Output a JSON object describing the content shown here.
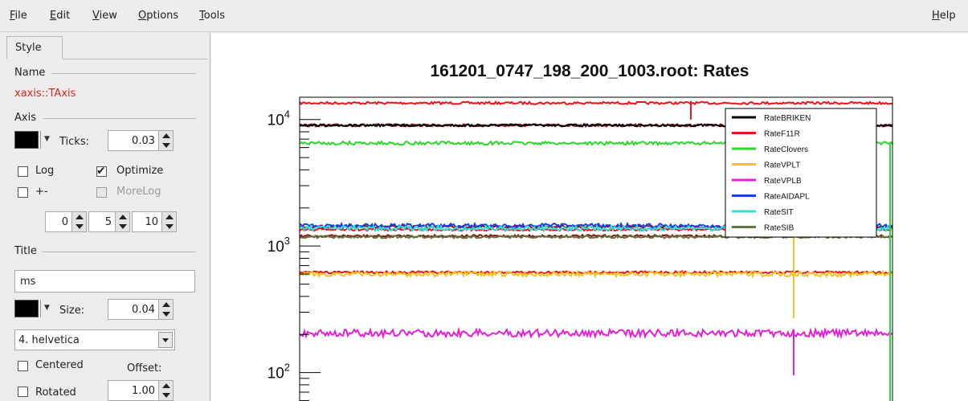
{
  "menubar": {
    "items": [
      {
        "key": "F",
        "rest": "ile"
      },
      {
        "key": "E",
        "rest": "dit"
      },
      {
        "key": "V",
        "rest": "iew"
      },
      {
        "key": "O",
        "rest": "ptions"
      },
      {
        "key": "T",
        "rest": "ools"
      }
    ],
    "help": {
      "key": "H",
      "rest": "elp"
    }
  },
  "editor": {
    "tab_label": "Style",
    "name_group": "Name",
    "object_name": "xaxis::TAxis",
    "axis_group": "Axis",
    "axis_color": "#000000",
    "ticks_label": "Ticks:",
    "ticks_value": "0.03",
    "log_label": "Log",
    "log_checked": false,
    "optimize_label": "Optimize",
    "optimize_checked": true,
    "plusminus_label": "+-",
    "plusminus_checked": false,
    "morelog_label": "MoreLog",
    "morelog_enabled": false,
    "divisions": [
      "0",
      "5",
      "10"
    ],
    "title_group": "Title",
    "title_value": "ms",
    "title_color": "#000000",
    "size_label": "Size:",
    "size_value": "0.04",
    "font_value": "4. helvetica",
    "centered_label": "Centered",
    "centered_checked": false,
    "offset_label": "Offset:",
    "rotated_label": "Rotated",
    "rotated_checked": false,
    "offset_value": "1.00"
  },
  "chart_data": {
    "type": "line",
    "title": "161201_0747_198_200_1003.root: Rates",
    "xlabel": "",
    "ylabel": "",
    "yscale": "log",
    "ylim": [
      50,
      15000
    ],
    "ytick_labels": [
      {
        "value": 100,
        "base": "10",
        "exp": "2"
      },
      {
        "value": 1000,
        "base": "10",
        "exp": "3"
      },
      {
        "value": 10000,
        "base": "10",
        "exp": "4"
      }
    ],
    "legend_position": "top-right",
    "series": [
      {
        "name": "RateBRIKEN",
        "color": "#000000",
        "level": 9000
      },
      {
        "name": "RateF11R",
        "color": "#e8141c",
        "level": 1350
      },
      {
        "name": "RateClovers",
        "color": "#2fd52f",
        "level": 6500
      },
      {
        "name": "RateVPLT",
        "color": "#f7c21a",
        "level": 600
      },
      {
        "name": "RateVPLB",
        "color": "#e61ed8",
        "level": 205
      },
      {
        "name": "RateAIDAPL",
        "color": "#1a3fe0",
        "level": 1450
      },
      {
        "name": "RateSIT",
        "color": "#2fe0d8",
        "level": 1380
      },
      {
        "name": "RateSIB",
        "color": "#5a7a3a",
        "level": 1180
      }
    ],
    "extra_lines": [
      {
        "color": "#e8141c",
        "level": 13500
      },
      {
        "color": "#8b1010",
        "level": 9000
      },
      {
        "color": "#8b1010",
        "level": 1420
      },
      {
        "color": "#8b1010",
        "level": 1200
      },
      {
        "color": "#e8141c",
        "level": 620
      }
    ]
  }
}
